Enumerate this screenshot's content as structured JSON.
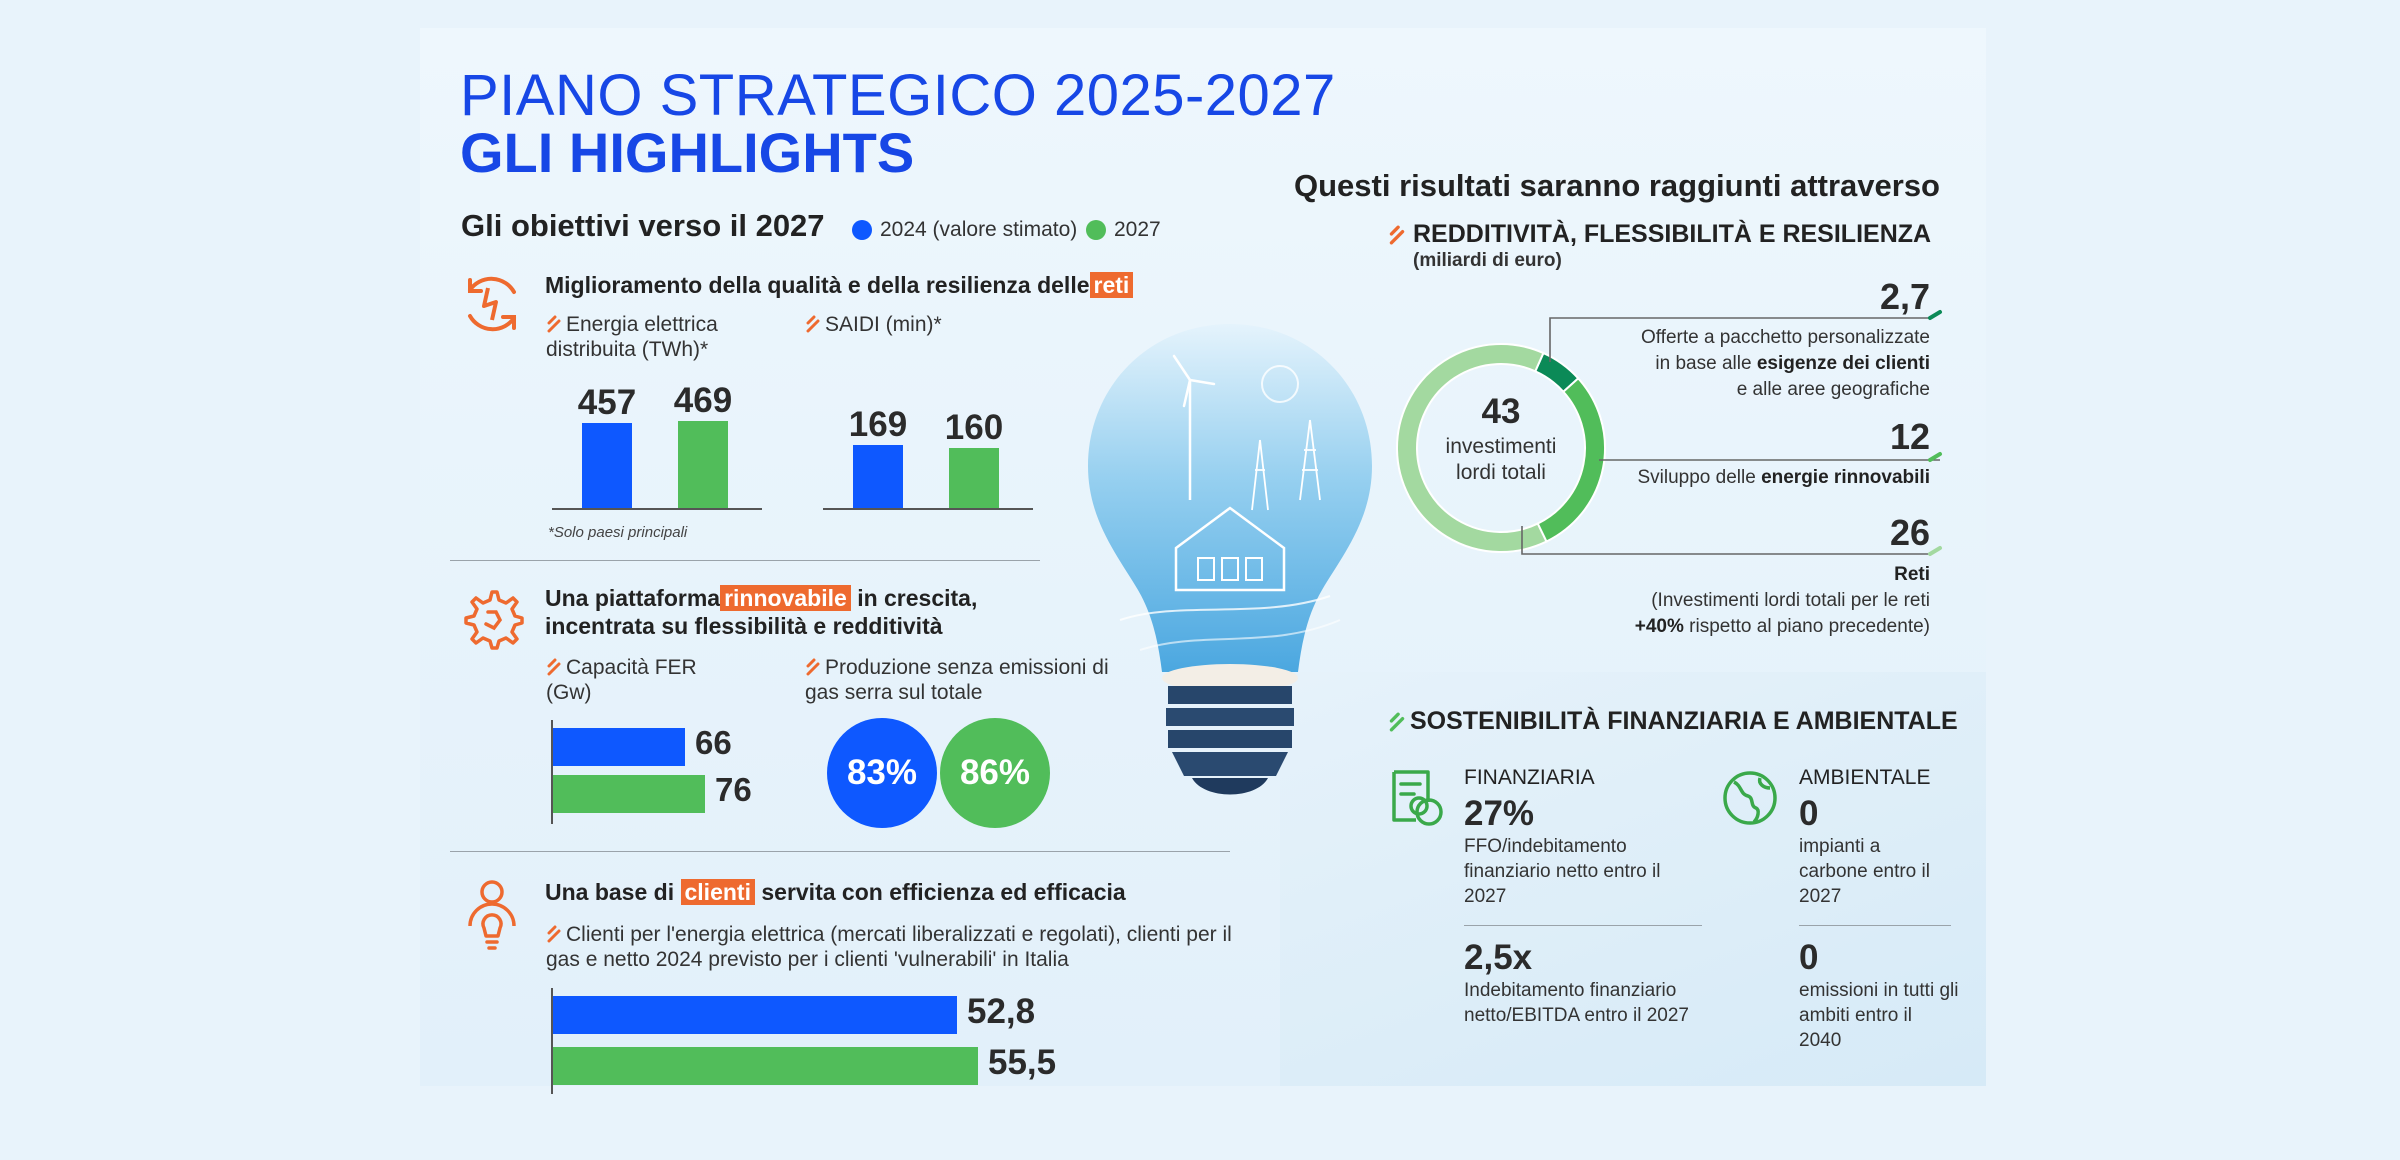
{
  "header": {
    "title_line1": "PIANO STRATEGICO 2025-2027",
    "title_line2": "GLI HIGHLIGHTS"
  },
  "left": {
    "subtitle": "Gli obiettivi verso il 2027",
    "legend": {
      "a": "2024 (valore stimato)",
      "b": "2027"
    },
    "colors": {
      "blue": "#0e58ff",
      "green": "#51bd5a",
      "orange": "#ee6a2f"
    },
    "section1": {
      "title_pre": "Miglioramento della qualità e della resilienza delle",
      "title_hl": "reti",
      "item1": "Energia elettrica distribuita (TWh)*",
      "item2": "SAIDI (min)*",
      "note": "*Solo paesi principali"
    },
    "section2": {
      "title_pre": "Una piattaforma",
      "title_hl": "rinnovabile",
      "title_post": "in crescita,",
      "title_line2": "incentrata su flessibilità e redditività",
      "item1": "Capacità FER (Gw)",
      "item2": "Produzione senza emissioni di gas serra sul totale"
    },
    "section3": {
      "title_pre": "Una base di",
      "title_hl": "clienti",
      "title_post": "servita con efficienza ed efficacia",
      "item1": "Clienti per l'energia elettrica (mercati liberalizzati e regolati), clienti per il gas e netto 2024 previsto per i clienti 'vulnerabili' in Italia"
    }
  },
  "chart_data": [
    {
      "type": "bar",
      "title": "Energia elettrica distribuita (TWh)*",
      "categories": [
        "2024 (valore stimato)",
        "2027"
      ],
      "values": [
        457,
        469
      ],
      "labels": [
        "457",
        "469"
      ]
    },
    {
      "type": "bar",
      "title": "SAIDI (min)*",
      "categories": [
        "2024 (valore stimato)",
        "2027"
      ],
      "values": [
        169,
        160
      ],
      "labels": [
        "169",
        "160"
      ]
    },
    {
      "type": "bar",
      "orientation": "horizontal",
      "title": "Capacità FER (Gw)",
      "categories": [
        "2024 (valore stimato)",
        "2027"
      ],
      "values": [
        66,
        76
      ],
      "labels": [
        "66",
        "76"
      ]
    },
    {
      "type": "pie",
      "title": "Produzione senza emissioni di gas serra sul totale",
      "categories": [
        "2024 (valore stimato)",
        "2027"
      ],
      "values": [
        83,
        86
      ],
      "labels": [
        "83%",
        "86%"
      ]
    },
    {
      "type": "bar",
      "orientation": "horizontal",
      "title": "Clienti per l'energia elettrica (mercati liberalizzati e regolati), clienti per il gas e netto 2024 previsto per i clienti 'vulnerabili' in Italia",
      "categories": [
        "2024 (valore stimato)",
        "2027"
      ],
      "values": [
        52.8,
        55.5
      ],
      "labels": [
        "52,8",
        "55,5"
      ]
    },
    {
      "type": "pie",
      "title": "REDDITIVITÀ, FLESSIBILITÀ E RESILIENZA",
      "center_value": "43",
      "center_label": "investimenti lordi totali",
      "categories": [
        "Offerte a pacchetto personalizzate",
        "Sviluppo delle energie rinnovabili",
        "Reti"
      ],
      "values": [
        2.7,
        12,
        26
      ],
      "labels": [
        "2,7",
        "12",
        "26"
      ],
      "colors": [
        "#0b8a57",
        "#51bd5a",
        "#a3d9a0"
      ]
    }
  ],
  "right": {
    "heading": "Questi risultati saranno raggiunti attraverso",
    "sec1_title": "REDDITIVITÀ, FLESSIBILITÀ E RESILIENZA",
    "sec1_sub": "(miliardi di euro)",
    "donut_center_num": "43",
    "donut_center_l1": "investimenti",
    "donut_center_l2": "lordi totali",
    "item1_num": "2,7",
    "item1_l1": "Offerte a pacchetto personalizzate",
    "item1_l2_pre": "in base alle ",
    "item1_l2_b": "esigenze dei clienti",
    "item1_l3": "e alle aree geografiche",
    "item2_num": "12",
    "item2_pre": "Sviluppo delle ",
    "item2_b": "energie rinnovabili",
    "item3_num": "26",
    "item3_b": "Reti",
    "item3_l2": "(Investimenti lordi totali per le reti",
    "item3_l3_b": "+40%",
    "item3_l3": " rispetto al piano precedente)",
    "sec2_title": "SOSTENIBILITÀ FINANZIARIA E AMBIENTALE",
    "fin": {
      "head": "FINANZIARIA",
      "n1": "27%",
      "t1": "FFO/indebitamento finanziario netto entro il 2027",
      "n2": "2,5x",
      "t2": "Indebitamento finanziario netto/EBITDA entro il 2027"
    },
    "amb": {
      "head": "AMBIENTALE",
      "n1": "0",
      "t1": "impianti a carbone entro il 2027",
      "n2": "0",
      "t2": "emissioni in tutti gli ambiti entro il 2040"
    }
  }
}
